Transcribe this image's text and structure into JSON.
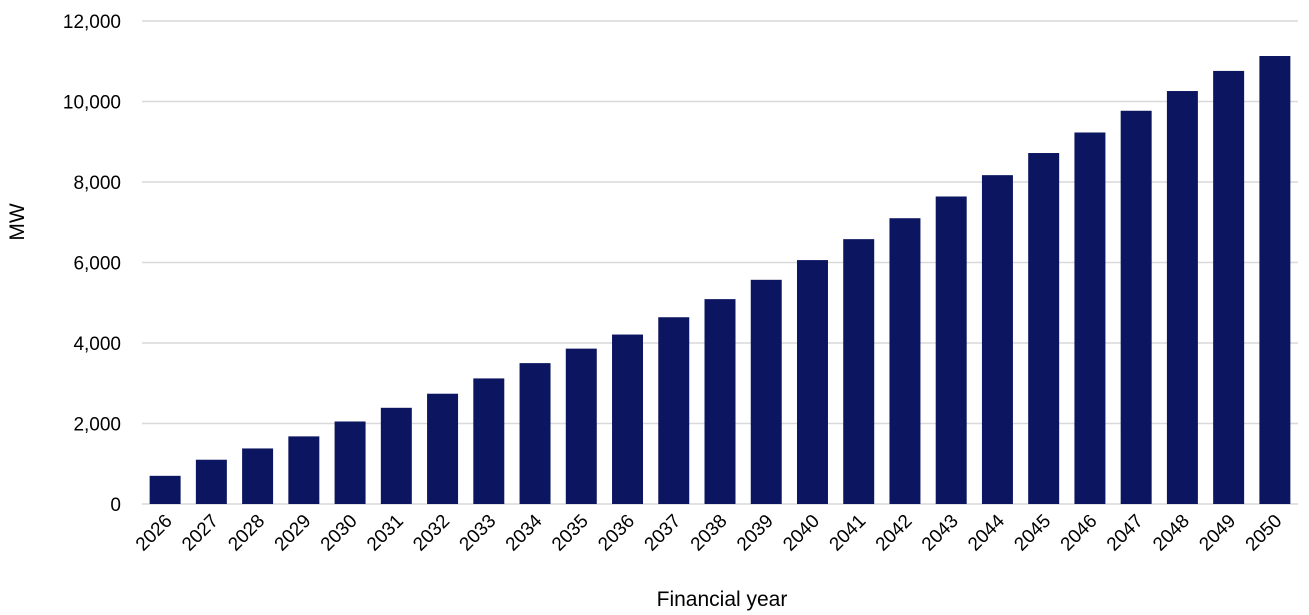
{
  "chart_data": {
    "type": "bar",
    "title": "",
    "xlabel": "Financial year",
    "ylabel": "MW",
    "ylim": [
      0,
      12000
    ],
    "yticks": [
      0,
      2000,
      4000,
      6000,
      8000,
      10000,
      12000
    ],
    "ytick_labels": [
      "0",
      "2,000",
      "4,000",
      "6,000",
      "8,000",
      "10,000",
      "12,000"
    ],
    "grid": true,
    "legend": "none",
    "bar_color": "#0b1560",
    "categories": [
      "2026",
      "2027",
      "2028",
      "2029",
      "2030",
      "2031",
      "2032",
      "2033",
      "2034",
      "2035",
      "2036",
      "2037",
      "2038",
      "2039",
      "2040",
      "2041",
      "2042",
      "2043",
      "2044",
      "2045",
      "2046",
      "2047",
      "2048",
      "2049",
      "2050"
    ],
    "values": [
      700,
      1100,
      1380,
      1680,
      2050,
      2390,
      2740,
      3120,
      3500,
      3860,
      4210,
      4640,
      5090,
      5570,
      6060,
      6580,
      7100,
      7640,
      8170,
      8720,
      9230,
      9770,
      10260,
      10760,
      11130
    ]
  }
}
